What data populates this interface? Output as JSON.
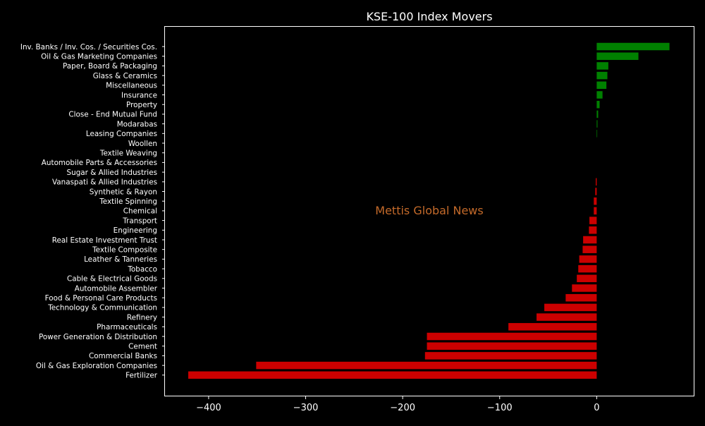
{
  "chart_data": {
    "type": "bar",
    "orientation": "horizontal",
    "title": "KSE-100 Index Movers",
    "watermark": "Mettis Global News",
    "xlim": [
      -445,
      100
    ],
    "xticks": [
      -400,
      -300,
      -200,
      -100,
      0
    ],
    "xtick_labels": [
      "−400",
      "−300",
      "−200",
      "−100",
      "0"
    ],
    "positive_color": "#008000",
    "negative_color": "#cc0000",
    "watermark_color": "#c46a2a",
    "grid": false,
    "categories": [
      "Inv. Banks / Inv. Cos. / Securities Cos.",
      "Oil & Gas Marketing Companies",
      "Paper, Board & Packaging",
      "Glass & Ceramics",
      "Miscellaneous",
      "Insurance",
      "Property",
      "Close - End Mutual Fund",
      "Modarabas",
      "Leasing Companies",
      "Woollen",
      "Textile Weaving",
      "Automobile Parts & Accessories",
      "Sugar & Allied Industries",
      "Vanaspati & Allied Industries",
      "Synthetic & Rayon",
      "Textile Spinning",
      "Chemical",
      "Transport",
      "Engineering",
      "Real Estate Investment Trust",
      "Textile Composite",
      "Leather & Tanneries",
      "Tobacco",
      "Cable & Electrical Goods",
      "Automobile Assembler",
      "Food & Personal Care Products",
      "Technology & Communication",
      "Refinery",
      "Pharmaceuticals",
      "Power Generation & Distribution",
      "Cement",
      "Commercial Banks",
      "Oil & Gas Exploration Companies",
      "Fertilizer"
    ],
    "values": [
      75,
      43,
      12,
      11,
      10,
      6,
      3,
      1.5,
      0.8,
      0.5,
      0,
      0,
      0,
      0,
      -1,
      -1.5,
      -3,
      -3,
      -7.5,
      -8,
      -14,
      -14.5,
      -18,
      -19,
      -20.5,
      -25.5,
      -32,
      -54,
      -62,
      -91,
      -175,
      -175,
      -177,
      -351,
      -421
    ]
  }
}
